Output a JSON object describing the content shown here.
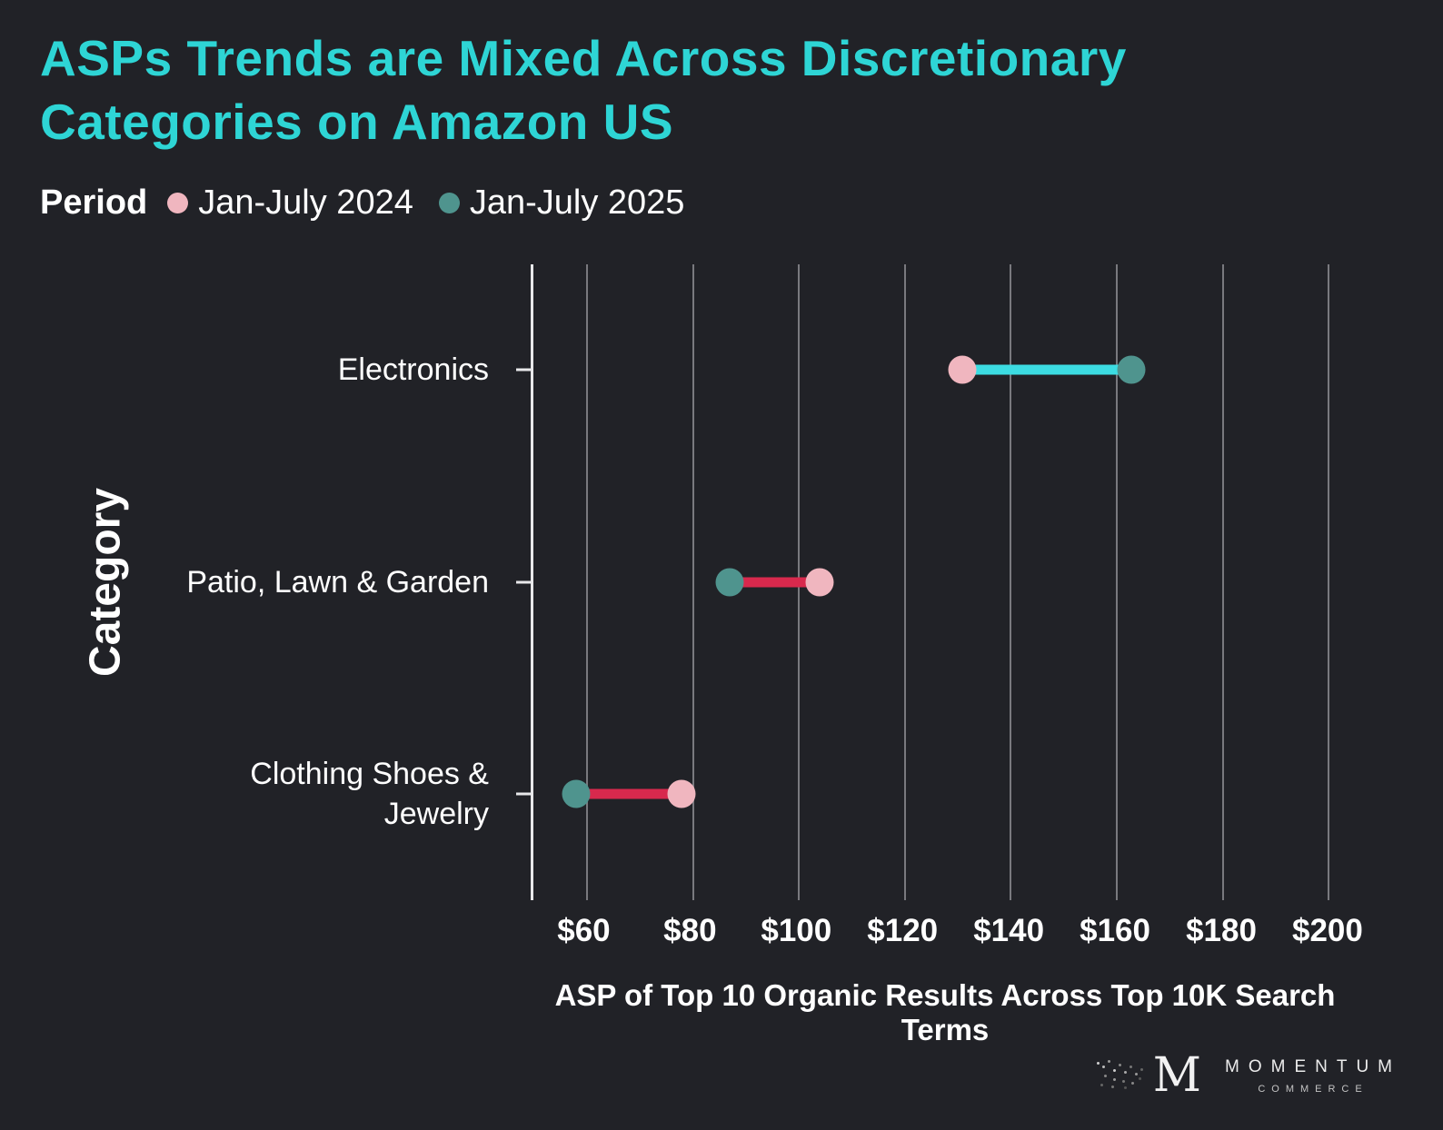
{
  "title": "ASPs Trends are Mixed Across Discretionary Categories on Amazon US",
  "legend": {
    "label": "Period",
    "items": [
      {
        "label": "Jan-July 2024",
        "color": "#f0b6bf"
      },
      {
        "label": "Jan-July 2025",
        "color": "#4f948e"
      }
    ]
  },
  "chart_data": {
    "type": "dumbbell",
    "categories": [
      "Electronics",
      "Patio, Lawn & Garden",
      "Clothing Shoes & Jewelry"
    ],
    "series": [
      {
        "name": "Jan-July 2024",
        "values": [
          131,
          104,
          78
        ],
        "color": "#f0b6bf"
      },
      {
        "name": "Jan-July 2025",
        "values": [
          163,
          87,
          58
        ],
        "color": "#4f948e"
      }
    ],
    "connector_colors": {
      "increase": "#3cdce2",
      "decrease": "#d8294d"
    },
    "xlabel": "ASP of Top 10 Organic Results Across Top 10K Search Terms",
    "ylabel": "Category",
    "x_domain": [
      50,
      206
    ],
    "x_ticks": [
      60,
      80,
      100,
      120,
      140,
      160,
      180,
      200
    ],
    "x_tick_labels": [
      "$60",
      "$80",
      "$100",
      "$120",
      "$140",
      "$160",
      "$180",
      "$200"
    ],
    "grid": true,
    "legend_position": "top"
  },
  "branding": {
    "monogram": "M",
    "name": "MOMENTUM",
    "subtitle": "COMMERCE"
  },
  "colors": {
    "background": "#212227",
    "title": "#2ed5d5",
    "text": "#ffffff",
    "grid": "#97979c",
    "axis": "#e8e8ea",
    "increase": "#3cdce2",
    "decrease": "#d8294d"
  }
}
